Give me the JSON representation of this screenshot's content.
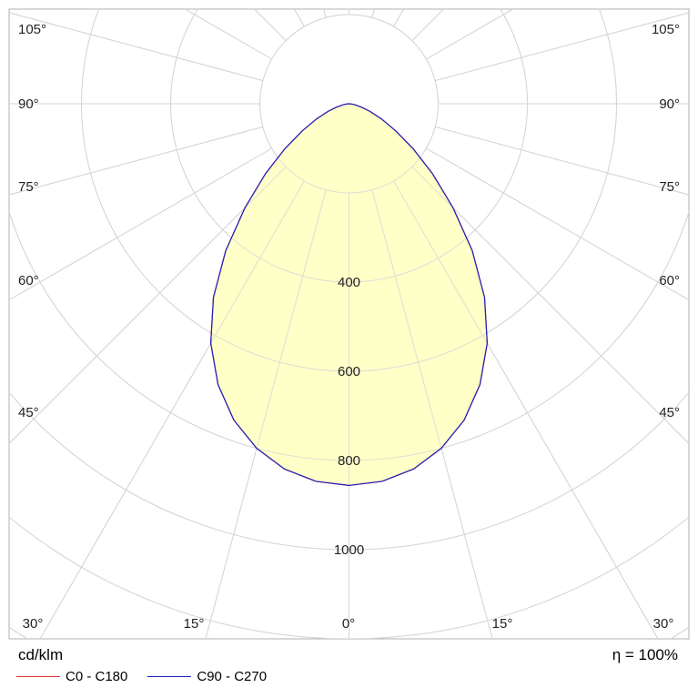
{
  "chart_data": {
    "type": "polar",
    "unit": "cd/klm",
    "efficiency_label": "η = 100%",
    "radial_ticks": [
      {
        "value": 400,
        "label": "400"
      },
      {
        "value": 600,
        "label": "600"
      },
      {
        "value": 800,
        "label": "800"
      },
      {
        "value": 1000,
        "label": "1000"
      }
    ],
    "angle_labels": [
      {
        "angle": 105,
        "label": "105°"
      },
      {
        "angle": 90,
        "label": "90°"
      },
      {
        "angle": 75,
        "label": "75°"
      },
      {
        "angle": 60,
        "label": "60°"
      },
      {
        "angle": 45,
        "label": "45°"
      }
    ],
    "bottom_labels": [
      {
        "angle": -30,
        "label": "30°"
      },
      {
        "angle": -15,
        "label": "15°"
      },
      {
        "angle": 0,
        "label": "0°"
      },
      {
        "angle": 15,
        "label": "15°"
      },
      {
        "angle": 30,
        "label": "30°"
      }
    ],
    "grid": true,
    "series": [
      {
        "name": "C0 - C180",
        "color": "#e03030",
        "gamma_deg": [
          0,
          5,
          10,
          15,
          20,
          25,
          30,
          35,
          40,
          45,
          50,
          55,
          60,
          65,
          70,
          75,
          80,
          85,
          90
        ],
        "intensity": [
          856,
          850,
          832,
          800,
          755,
          695,
          620,
          530,
          430,
          330,
          245,
          175,
          120,
          80,
          50,
          28,
          14,
          5,
          0
        ]
      },
      {
        "name": "C90 - C270",
        "color": "#2020c0",
        "gamma_deg": [
          0,
          5,
          10,
          15,
          20,
          25,
          30,
          35,
          40,
          45,
          50,
          55,
          60,
          65,
          70,
          75,
          80,
          85,
          90
        ],
        "intensity": [
          856,
          850,
          832,
          800,
          755,
          695,
          620,
          530,
          430,
          330,
          245,
          175,
          120,
          80,
          50,
          28,
          14,
          5,
          0
        ]
      }
    ],
    "fill_color": "#ffffc8"
  }
}
